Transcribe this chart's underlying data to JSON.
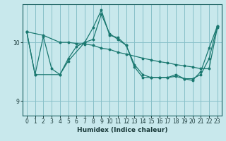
{
  "xlabel": "Humidex (Indice chaleur)",
  "background_color": "#c8e8ec",
  "grid_color": "#88c0c8",
  "line_color": "#1a7870",
  "xlim": [
    -0.5,
    23.5
  ],
  "ylim": [
    8.75,
    10.65
  ],
  "yticks": [
    9,
    10
  ],
  "xticks": [
    0,
    1,
    2,
    3,
    4,
    5,
    6,
    7,
    8,
    9,
    10,
    11,
    12,
    13,
    14,
    15,
    16,
    17,
    18,
    19,
    20,
    21,
    22,
    23
  ],
  "line1_x": [
    0,
    2,
    4,
    5,
    6,
    7,
    8,
    9,
    10,
    11,
    12,
    14,
    15,
    16,
    17,
    18,
    19,
    20,
    21,
    22,
    23
  ],
  "line1_y": [
    10.18,
    10.12,
    10.0,
    10.0,
    9.98,
    9.97,
    9.95,
    9.9,
    9.88,
    9.83,
    9.8,
    9.73,
    9.7,
    9.67,
    9.65,
    9.62,
    9.6,
    9.58,
    9.55,
    9.55,
    10.25
  ],
  "line2_x": [
    0,
    1,
    2,
    3,
    4,
    5,
    6,
    7,
    8,
    9,
    10,
    11,
    12,
    13,
    14,
    15,
    16,
    17,
    18,
    19,
    20,
    21,
    22,
    23
  ],
  "line2_y": [
    10.18,
    9.45,
    10.1,
    9.55,
    9.45,
    9.72,
    9.93,
    10.0,
    10.05,
    10.48,
    10.15,
    10.05,
    9.95,
    9.62,
    9.45,
    9.4,
    9.4,
    9.4,
    9.42,
    9.38,
    9.38,
    9.45,
    9.72,
    10.28
  ],
  "line3_x": [
    0,
    1,
    4,
    5,
    7,
    8,
    9,
    10,
    11,
    12,
    13,
    14,
    15,
    16,
    17,
    18,
    19,
    20,
    21,
    22,
    23
  ],
  "line3_y": [
    10.18,
    9.45,
    9.45,
    9.68,
    10.0,
    10.25,
    10.55,
    10.12,
    10.08,
    9.95,
    9.58,
    9.4,
    9.4,
    9.4,
    9.4,
    9.45,
    9.38,
    9.35,
    9.5,
    9.9,
    10.28
  ]
}
